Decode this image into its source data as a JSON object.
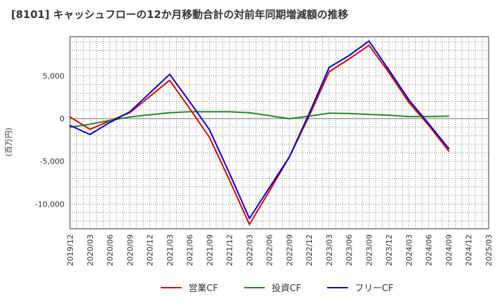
{
  "chart_data": {
    "type": "line",
    "title": "[8101]  キャッシュフローの12か月移動合計の対前年同期増減額の推移",
    "ylabel": "(百万円)",
    "xlabel": "",
    "categories": [
      "2019/12",
      "2020/03",
      "2020/06",
      "2020/09",
      "2020/12",
      "2021/03",
      "2021/06",
      "2021/09",
      "2021/12",
      "2022/03",
      "2022/06",
      "2022/09",
      "2022/12",
      "2023/03",
      "2023/06",
      "2023/09",
      "2023/12",
      "2024/03",
      "2024/06",
      "2024/09",
      "2024/12",
      "2025/03"
    ],
    "ylim": [
      -12900,
      9600
    ],
    "yticks": [
      5000,
      0,
      -5000,
      -10000
    ],
    "ytick_labels": [
      "5,000",
      "0",
      "-5,000",
      "-10,000"
    ],
    "grid": true,
    "legend_position": "bottom",
    "series": [
      {
        "name": "営業CF",
        "color": "#dd0000",
        "values": [
          200,
          -1250,
          -250,
          700,
          2600,
          4500,
          1200,
          -2200,
          -7200,
          -12400,
          -8500,
          -4500,
          300,
          5500,
          7000,
          8600,
          5400,
          1900,
          -800,
          -3800,
          null,
          null
        ]
      },
      {
        "name": "投資CF",
        "color": "#228822",
        "values": [
          -1000,
          -650,
          -200,
          200,
          450,
          700,
          800,
          800,
          800,
          700,
          350,
          0,
          300,
          650,
          600,
          500,
          400,
          250,
          250,
          300,
          null,
          null
        ]
      },
      {
        "name": "フリーCF",
        "color": "#0000cc",
        "values": [
          -800,
          -1850,
          -450,
          800,
          3000,
          5200,
          2000,
          -1300,
          -6400,
          -11700,
          -8100,
          -4500,
          600,
          6000,
          7400,
          9100,
          5700,
          2200,
          -600,
          -3500,
          null,
          null
        ]
      }
    ]
  }
}
